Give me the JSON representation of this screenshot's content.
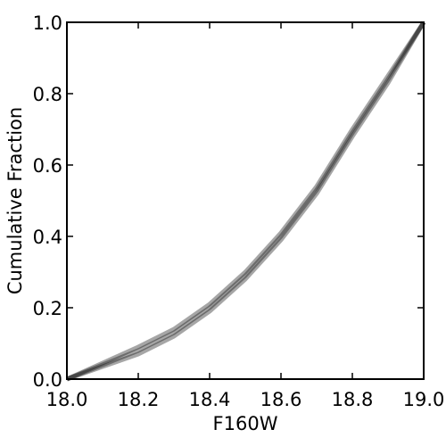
{
  "chart_data": {
    "type": "line",
    "x_label": "F160W",
    "y_label": "Cumulative Fraction",
    "x": [
      18.0,
      18.1,
      18.2,
      18.3,
      18.4,
      18.5,
      18.6,
      18.7,
      18.8,
      18.9,
      19.0
    ],
    "series": [
      {
        "color": "#000000",
        "values": [
          0,
          0.045,
          0.09,
          0.14,
          0.21,
          0.3,
          0.41,
          0.54,
          0.7,
          0.85,
          1.0
        ]
      },
      {
        "color": "#000000",
        "values": [
          0,
          0.04,
          0.08,
          0.13,
          0.2,
          0.29,
          0.4,
          0.53,
          0.69,
          0.84,
          1.0
        ]
      },
      {
        "color": "#000000",
        "values": [
          0,
          0.035,
          0.07,
          0.12,
          0.19,
          0.28,
          0.39,
          0.52,
          0.68,
          0.83,
          1.0
        ]
      }
    ],
    "xlim": [
      18.0,
      19.0
    ],
    "xticks": [
      {
        "value": 18,
        "label": "18.0"
      },
      18.2,
      18.4,
      18.6,
      18.8,
      {
        "value": 19,
        "label": "19.0"
      }
    ],
    "ylim": [
      0,
      1
    ],
    "yticks": [
      {
        "value": 0,
        "label": "0.0"
      },
      0.2,
      0.4,
      0.6,
      0.8,
      {
        "value": 1,
        "label": "1.0"
      }
    ],
    "grid": false
  }
}
